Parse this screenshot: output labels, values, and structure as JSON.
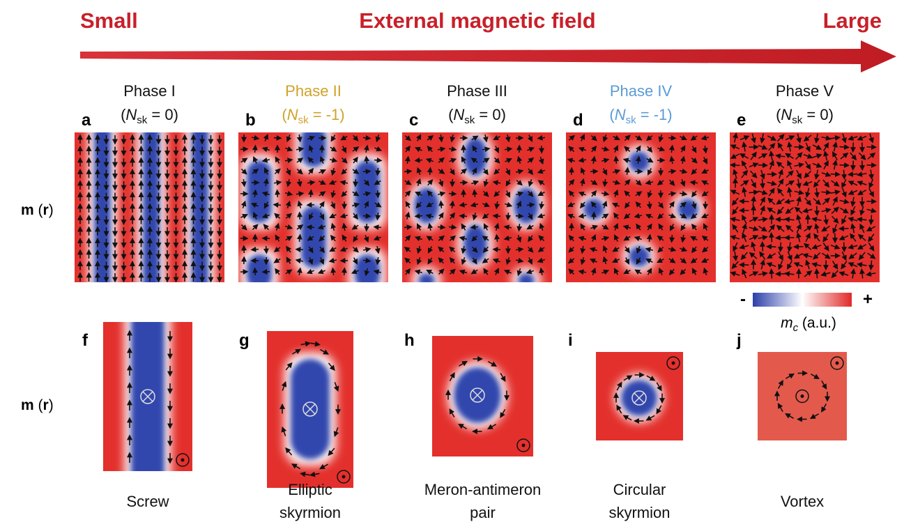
{
  "header": {
    "left": "Small",
    "center": "External magnetic field",
    "right": "Large"
  },
  "row_label": {
    "m": "m",
    "open": " (",
    "r": "r",
    "close": ")"
  },
  "phases": [
    {
      "letter": "a",
      "title": "Phase I",
      "color": "#111111",
      "charge": {
        "open": "(",
        "symbol": "N",
        "sub": "sk",
        "rest": " = 0)"
      }
    },
    {
      "letter": "b",
      "title": "Phase II",
      "color": "#d0a22a",
      "charge": {
        "open": "(",
        "symbol": "N",
        "sub": "sk",
        "rest": " = -1)"
      }
    },
    {
      "letter": "c",
      "title": "Phase III",
      "color": "#111111",
      "charge": {
        "open": "(",
        "symbol": "N",
        "sub": "sk",
        "rest": " = 0)"
      }
    },
    {
      "letter": "d",
      "title": "Phase IV",
      "color": "#5b9bd5",
      "charge": {
        "open": "(",
        "symbol": "N",
        "sub": "sk",
        "rest": " = -1)"
      }
    },
    {
      "letter": "e",
      "title": "Phase V",
      "color": "#111111",
      "charge": {
        "open": "(",
        "symbol": "N",
        "sub": "sk",
        "rest": " = 0)"
      }
    }
  ],
  "colorbar": {
    "minus": "-",
    "plus": "+",
    "symbol": "m",
    "sub": "c",
    "unit": " (a.u.)"
  },
  "details": [
    {
      "letter": "f",
      "caption": [
        "Screw"
      ]
    },
    {
      "letter": "g",
      "caption": [
        "Elliptic",
        "skyrmion"
      ]
    },
    {
      "letter": "h",
      "caption": [
        "Meron-antimeron",
        "pair"
      ]
    },
    {
      "letter": "i",
      "caption": [
        "Circular",
        "skyrmion"
      ]
    },
    {
      "letter": "j",
      "caption": [
        "Vortex"
      ]
    }
  ]
}
